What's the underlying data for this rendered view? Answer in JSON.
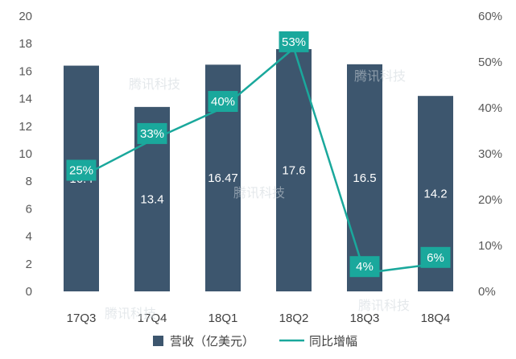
{
  "chart_data": {
    "type": "bar",
    "categories": [
      "17Q3",
      "17Q4",
      "18Q1",
      "18Q2",
      "18Q3",
      "18Q4"
    ],
    "series": [
      {
        "name": "营收（亿美元）",
        "type": "bar",
        "axis": "left",
        "values": [
          16.4,
          13.4,
          16.47,
          17.6,
          16.5,
          14.2
        ],
        "labels": [
          "16.4",
          "13.4",
          "16.47",
          "17.6",
          "16.5",
          "14.2"
        ],
        "color": "#3d566e"
      },
      {
        "name": "同比增幅",
        "type": "line",
        "axis": "right",
        "values": [
          25,
          33,
          40,
          53,
          4,
          6
        ],
        "labels": [
          "25%",
          "33%",
          "40%",
          "53%",
          "4%",
          "6%"
        ],
        "color": "#1aa89c"
      }
    ],
    "ylim_left": [
      0,
      20
    ],
    "yticks_left": [
      "0",
      "2",
      "4",
      "6",
      "8",
      "10",
      "12",
      "14",
      "16",
      "18",
      "20"
    ],
    "ylim_right": [
      0,
      60
    ],
    "yticks_right": [
      "0%",
      "10%",
      "20%",
      "30%",
      "40%",
      "50%",
      "60%"
    ],
    "grid": false,
    "legend_position": "bottom"
  },
  "watermark": "腾讯科技"
}
